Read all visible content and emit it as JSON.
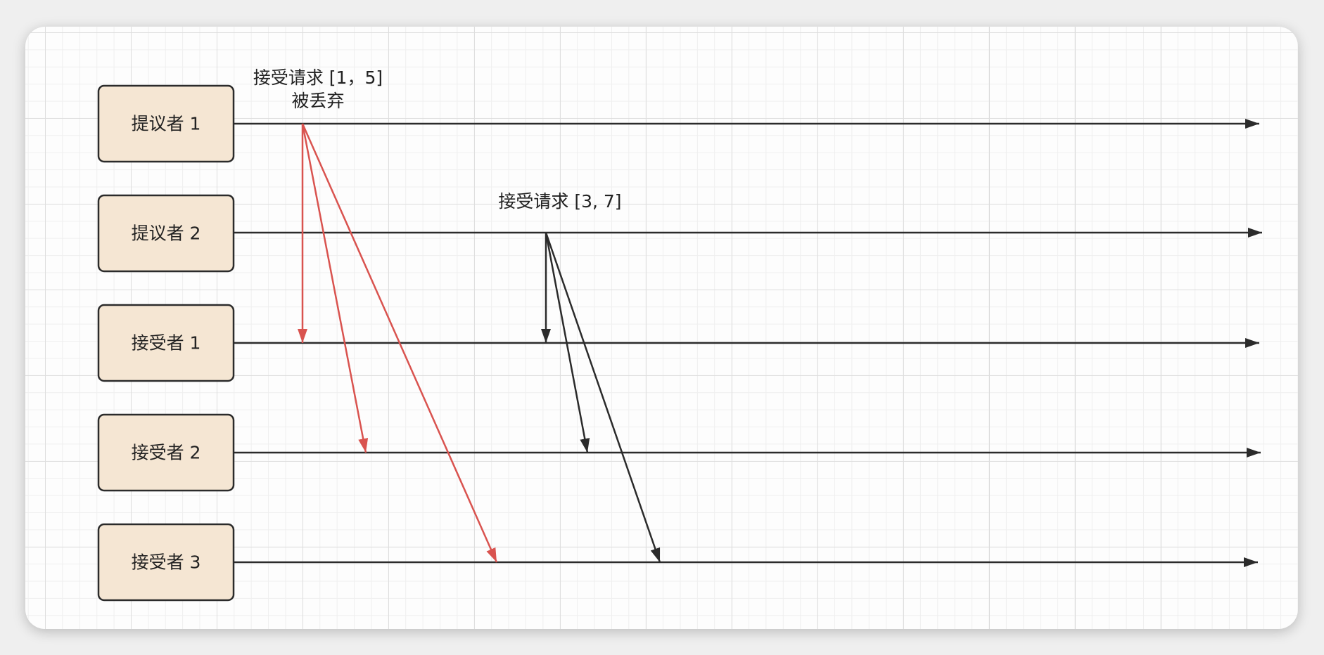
{
  "nodes": [
    {
      "id": "proposer-1",
      "label": "提议者 1"
    },
    {
      "id": "proposer-2",
      "label": "提议者 2"
    },
    {
      "id": "acceptor-1",
      "label": "接受者 1"
    },
    {
      "id": "acceptor-2",
      "label": "接受者 2"
    },
    {
      "id": "acceptor-3",
      "label": "接受者 3"
    }
  ],
  "annotations": {
    "request_1_line1": "接受请求 [1，5]",
    "request_1_line2": "被丢弃",
    "request_2": "接受请求 [3, 7]"
  },
  "colors": {
    "rejected_message": "#d9534f",
    "accepted_message": "#2b2b2b",
    "node_fill": "#f5e6d3"
  },
  "messages": [
    {
      "from": "proposer-1",
      "to": "acceptor-1",
      "status": "discarded"
    },
    {
      "from": "proposer-1",
      "to": "acceptor-2",
      "status": "discarded"
    },
    {
      "from": "proposer-1",
      "to": "acceptor-3",
      "status": "discarded"
    },
    {
      "from": "proposer-2",
      "to": "acceptor-1",
      "status": "accepted"
    },
    {
      "from": "proposer-2",
      "to": "acceptor-2",
      "status": "accepted"
    },
    {
      "from": "proposer-2",
      "to": "acceptor-3",
      "status": "accepted"
    }
  ]
}
